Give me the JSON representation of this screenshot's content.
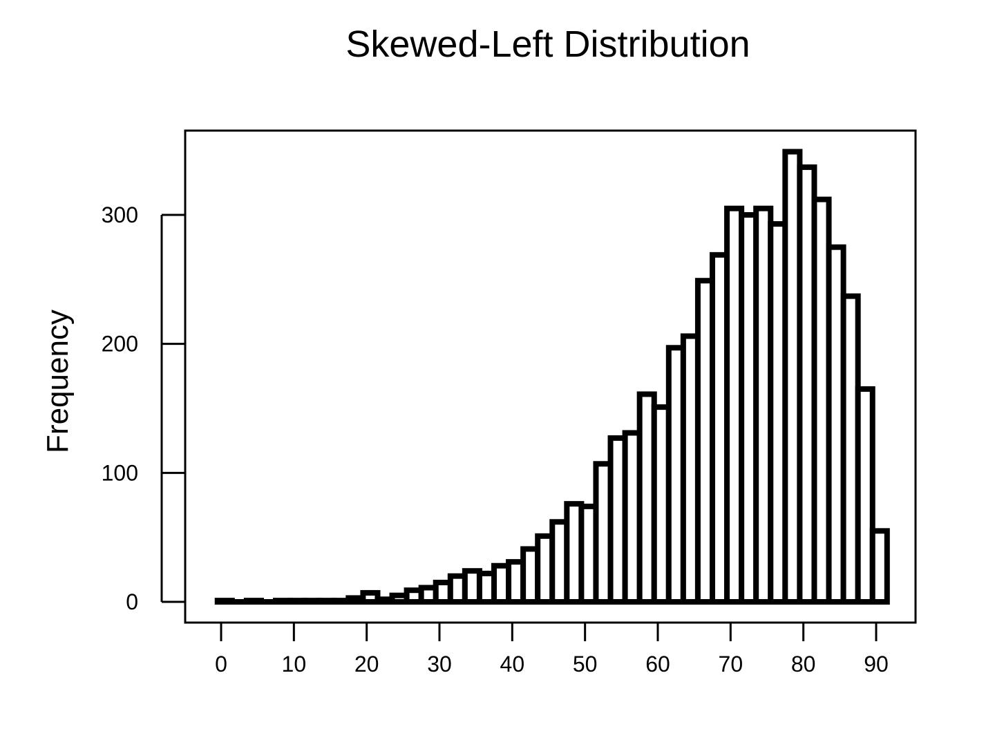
{
  "chart_data": {
    "type": "bar",
    "title": "Skewed-Left Distribution",
    "xlabel": "",
    "ylabel": "Frequency",
    "bin_width": 2,
    "x_start": -0.5,
    "xlim": [
      -0.5,
      91.5
    ],
    "ylim": [
      0,
      350
    ],
    "x_ticks": [
      0,
      10,
      20,
      30,
      40,
      50,
      60,
      70,
      80,
      90
    ],
    "y_ticks": [
      0,
      100,
      200,
      300
    ],
    "grid": false,
    "values": [
      1,
      0,
      1,
      0,
      1,
      1,
      1,
      1,
      1,
      3,
      7,
      2,
      5,
      9,
      11,
      15,
      20,
      24,
      22,
      28,
      31,
      41,
      51,
      62,
      76,
      74,
      107,
      127,
      131,
      161,
      151,
      197,
      206,
      249,
      269,
      305,
      300,
      305,
      293,
      349,
      337,
      312,
      275,
      237,
      165,
      55
    ]
  }
}
